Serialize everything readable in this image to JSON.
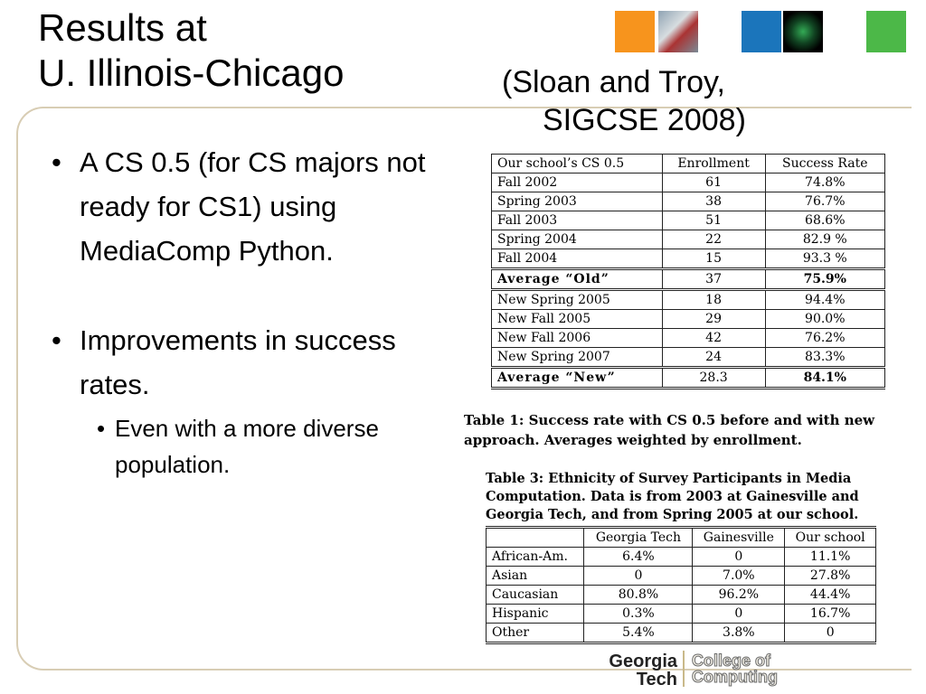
{
  "title": {
    "line1": "Results at",
    "line2": "U. Illinois-Chicago"
  },
  "citation": {
    "line1": "(Sloan and Troy,",
    "line2": "SIGCSE 2008)"
  },
  "bullets": {
    "b1": "A CS 0.5 (for CS majors not ready for CS1) using MediaComp Python.",
    "b2": "Improvements in success rates.",
    "b2_sub": "Even with a more diverse population."
  },
  "table1": {
    "headers": [
      "Our school’s CS 0.5",
      "Enrollment",
      "Success Rate"
    ],
    "rows": [
      [
        "Fall 2002",
        "61",
        "74.8%"
      ],
      [
        "Spring 2003",
        "38",
        "76.7%"
      ],
      [
        "Fall 2003",
        "51",
        "68.6%"
      ],
      [
        "Spring 2004",
        "22",
        "82.9 %"
      ],
      [
        "Fall 2004",
        "15",
        "93.3 %"
      ],
      [
        "Average “Old”",
        "37",
        "75.9%"
      ],
      [
        "New Spring 2005",
        "18",
        "94.4%"
      ],
      [
        "New Fall 2005",
        "29",
        "90.0%"
      ],
      [
        "New Fall 2006",
        "42",
        "76.2%"
      ],
      [
        "New Spring 2007",
        "24",
        "83.3%"
      ],
      [
        "Average “New”",
        "28.3",
        "84.1%"
      ]
    ],
    "caption": "Table 1: Success rate with CS 0.5 before and with new approach. Averages weighted by enrollment."
  },
  "table3": {
    "caption": "Table 3: Ethnicity of Survey Participants in Media Computation. Data is from 2003 at Gainesville and Georgia Tech, and from Spring 2005 at our school.",
    "headers": [
      "",
      "Georgia Tech",
      "Gainesville",
      "Our school"
    ],
    "rows": [
      [
        "African-Am.",
        "6.4%",
        "0",
        "11.1%"
      ],
      [
        "Asian",
        "0",
        "7.0%",
        "27.8%"
      ],
      [
        "Caucasian",
        "80.8%",
        "96.2%",
        "44.4%"
      ],
      [
        "Hispanic",
        "0.3%",
        "0",
        "16.7%"
      ],
      [
        "Other",
        "5.4%",
        "3.8%",
        "0"
      ]
    ]
  },
  "logo": {
    "georgia": "Georgia",
    "tech": "Tech",
    "college": "College of",
    "computing": "Computing"
  },
  "colors": {
    "orange": "#f7941d",
    "blue": "#1b75bb",
    "green": "#4cb848",
    "frame": "#d8cdb4"
  }
}
